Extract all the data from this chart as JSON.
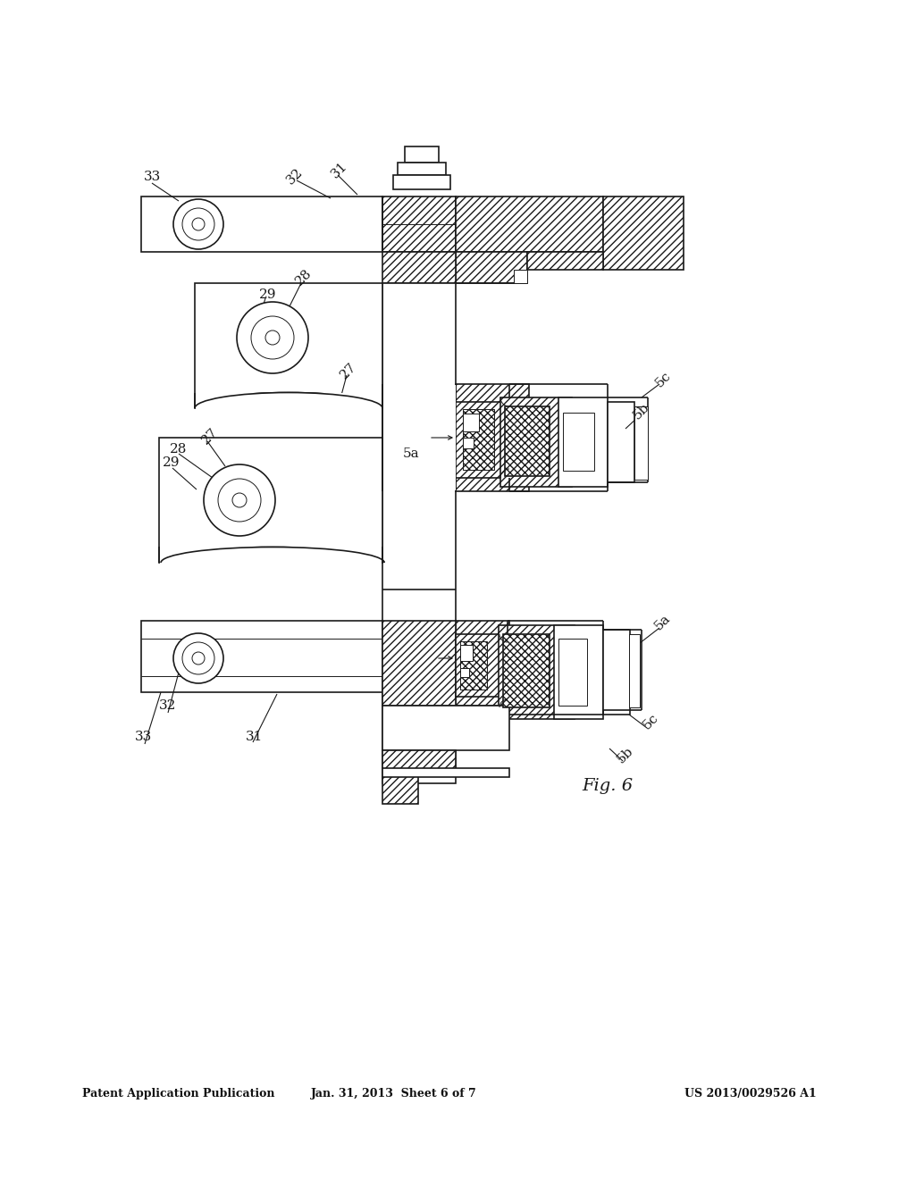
{
  "background_color": "#ffffff",
  "header_text_left": "Patent Application Publication",
  "header_text_mid": "Jan. 31, 2013  Sheet 6 of 7",
  "header_text_right": "US 2013/0029526 A1",
  "figure_label": "Fig. 6",
  "dc": "#1a1a1a",
  "lw_main": 1.2,
  "lw_thin": 0.7,
  "lw_hatch": 0.5
}
